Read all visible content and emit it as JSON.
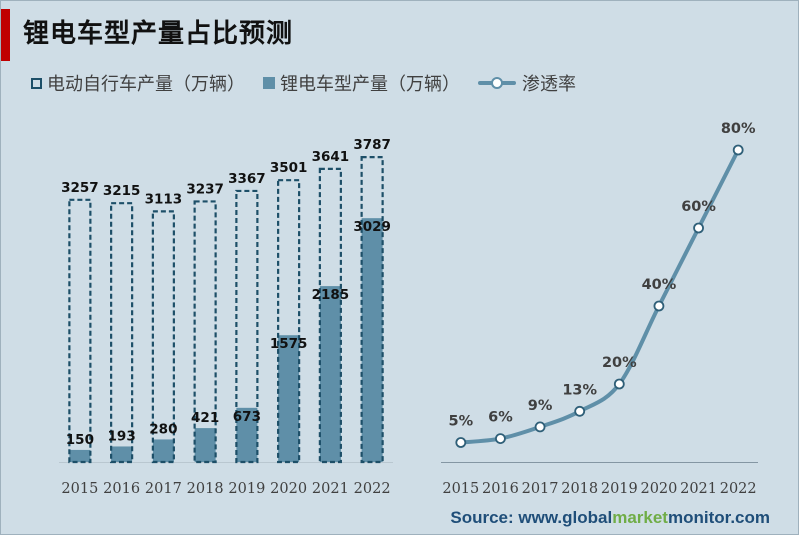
{
  "title": "锂电车型产量占比预测",
  "legend": {
    "ebike": "电动自行车产量（万辆）",
    "lithium": "锂电车型产量（万辆）",
    "rate": "渗透率"
  },
  "colors": {
    "accent": "#c00000",
    "bar_fill": "#5f8fa8",
    "bar_dash": "#1d4f68",
    "line": "#5f8fa8",
    "background": "#cfdde6",
    "source_blue": "#1f4e79",
    "source_green": "#70ad47"
  },
  "source": {
    "prefix": "Source: www.",
    "part1": "global",
    "part2": "market",
    "part3": "monitor",
    "suffix": ".com"
  },
  "chart_data": [
    {
      "type": "bar",
      "categories": [
        "2015",
        "2016",
        "2017",
        "2018",
        "2019",
        "2020",
        "2021",
        "2022"
      ],
      "series": [
        {
          "name": "电动自行车产量（万辆）",
          "values": [
            3257,
            3215,
            3113,
            3237,
            3367,
            3501,
            3641,
            3787
          ]
        },
        {
          "name": "锂电车型产量（万辆）",
          "values": [
            150,
            193,
            280,
            421,
            673,
            1575,
            2185,
            3029
          ]
        }
      ],
      "ylim": [
        0,
        4000
      ],
      "grid": false,
      "legend_position": "top"
    },
    {
      "type": "line",
      "x": [
        "2015",
        "2016",
        "2017",
        "2018",
        "2019",
        "2020",
        "2021",
        "2022"
      ],
      "series": [
        {
          "name": "渗透率",
          "values": [
            5,
            6,
            9,
            13,
            20,
            40,
            60,
            80
          ],
          "labels": [
            "5%",
            "6%",
            "9%",
            "13%",
            "20%",
            "40%",
            "60%",
            "80%"
          ]
        }
      ],
      "ylim": [
        0,
        90
      ],
      "grid": false,
      "legend_position": "top"
    }
  ]
}
